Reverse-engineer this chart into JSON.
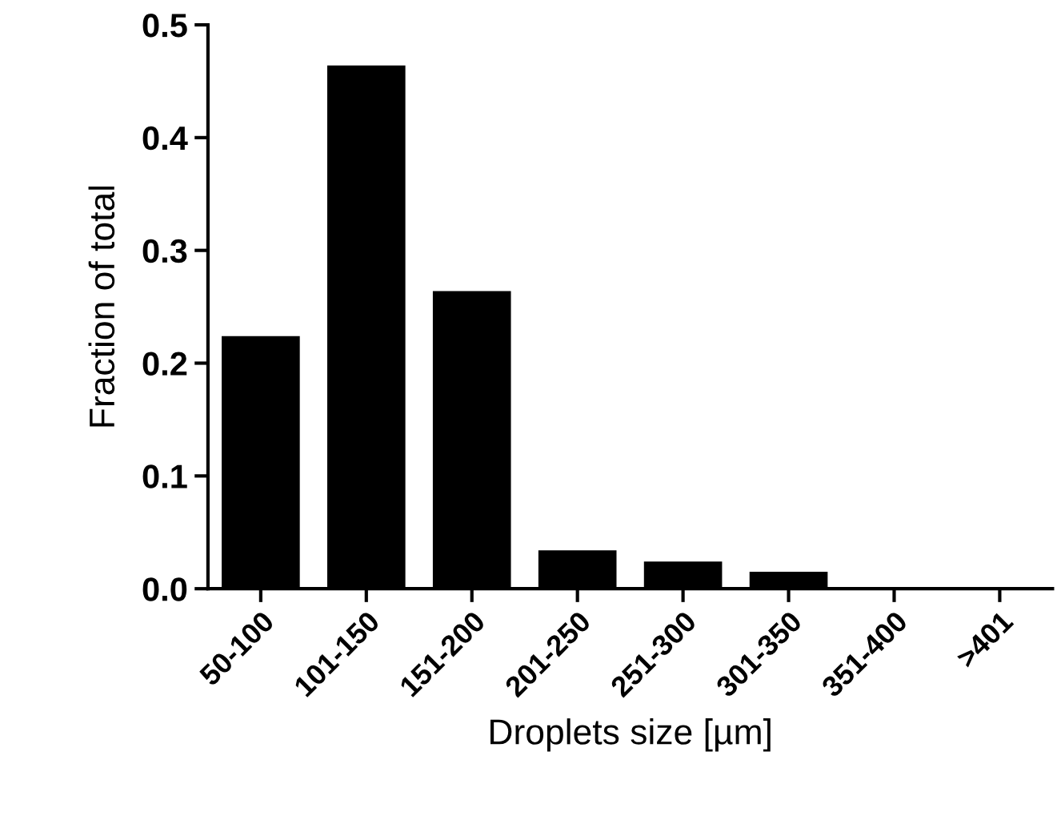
{
  "chart_data": {
    "type": "bar",
    "xlabel": "Droplets size [µm]",
    "ylabel": "Fraction of total",
    "categories": [
      "50-100",
      "101-150",
      "151-200",
      "201-250",
      "251-300",
      "301-350",
      "351-400",
      ">401"
    ],
    "values": [
      0.224,
      0.464,
      0.264,
      0.034,
      0.024,
      0.015,
      0,
      0
    ],
    "color": "#000000",
    "ylim": [
      0,
      0.5
    ],
    "yticks": [
      {
        "value": 0,
        "label": "0.0"
      },
      0.1,
      0.2,
      0.3,
      0.4,
      0.5
    ],
    "grid": false
  }
}
